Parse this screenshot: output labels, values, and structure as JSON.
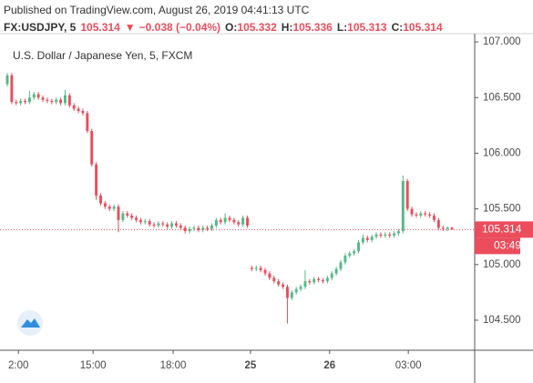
{
  "header": {
    "published": "Published on TradingView.com, August 26, 2019 04:41:13 UTC",
    "symbol": "FX:USDJPY, 5",
    "change_arrow": "▼",
    "change": "−0.038 (−0.04%)",
    "open_label": "O:",
    "high_label": "H:",
    "low_label": "L:",
    "close_label": "C:"
  },
  "chart_data": {
    "type": "candlestick",
    "title": "U.S. Dollar / Japanese Yen, 5, FXCM",
    "up_color": "#53b987",
    "down_color": "#eb4d5c",
    "grid": false,
    "countdown": "03:49",
    "ylim": [
      104.23,
      107.074
    ],
    "yticks": [
      {
        "value": 104.5,
        "label": "104.500"
      },
      {
        "value": 105,
        "label": "105.000"
      },
      {
        "value": 105.5,
        "label": "105.500"
      },
      {
        "value": 106,
        "label": "106.000"
      },
      {
        "value": 106.5,
        "label": "106.500"
      },
      {
        "value": 107,
        "label": "107.000"
      }
    ],
    "xlim": [
      -1.64,
      104.92
    ],
    "xticks": [
      {
        "value": 2.5,
        "label": "2:00"
      },
      {
        "value": 19.3,
        "label": "15:00"
      },
      {
        "value": 37.3,
        "label": "18:00"
      },
      {
        "value": 54.7,
        "label": "25"
      },
      {
        "value": 72.5,
        "label": "26"
      },
      {
        "value": 90.2,
        "label": "03:00"
      }
    ],
    "open": [
      106.62,
      106.7,
      106.46,
      106.45,
      106.47,
      106.46,
      106.5,
      106.53,
      106.5,
      106.48,
      106.47,
      106.46,
      106.48,
      106.45,
      106.52,
      106.43,
      106.4,
      106.38,
      106.36,
      106.2,
      105.9,
      105.62,
      105.55,
      105.52,
      105.5,
      105.52,
      105.4,
      105.46,
      105.44,
      105.42,
      105.4,
      105.38,
      105.39,
      105.36,
      105.35,
      105.37,
      105.36,
      105.34,
      105.37,
      105.35,
      105.33,
      105.3,
      105.32,
      105.33,
      105.31,
      105.33,
      105.32,
      105.35,
      105.4,
      105.38,
      105.42,
      105.4,
      105.38,
      105.36,
      105.42,
      104.97,
      104.96,
      104.97,
      104.95,
      104.92,
      104.88,
      104.85,
      104.82,
      104.8,
      104.7,
      104.75,
      104.78,
      104.8,
      104.85,
      104.84,
      104.87,
      104.86,
      104.85,
      104.88,
      104.92,
      104.96,
      105.02,
      105.08,
      105.1,
      105.12,
      105.2,
      105.24,
      105.22,
      105.25,
      105.27,
      105.26,
      105.27,
      105.26,
      105.28,
      105.3,
      105.75,
      105.5,
      105.45,
      105.44,
      105.46,
      105.45,
      105.44,
      105.4,
      105.33,
      105.32,
      105.332
    ],
    "high": [
      106.72,
      106.72,
      106.48,
      106.49,
      106.49,
      106.56,
      106.55,
      106.55,
      106.52,
      106.5,
      106.49,
      106.5,
      106.5,
      106.57,
      106.54,
      106.45,
      106.42,
      106.4,
      106.38,
      106.22,
      105.92,
      105.64,
      105.57,
      105.54,
      105.54,
      105.54,
      105.48,
      105.48,
      105.46,
      105.44,
      105.42,
      105.41,
      105.41,
      105.38,
      105.39,
      105.39,
      105.38,
      105.39,
      105.39,
      105.37,
      105.35,
      105.34,
      105.35,
      105.35,
      105.35,
      105.35,
      105.37,
      105.42,
      105.42,
      105.46,
      105.44,
      105.42,
      105.4,
      105.44,
      105.44,
      104.99,
      104.99,
      104.99,
      104.97,
      104.94,
      104.9,
      104.87,
      104.84,
      104.82,
      104.77,
      104.8,
      104.82,
      104.95,
      104.87,
      104.89,
      104.89,
      104.88,
      104.9,
      104.94,
      104.98,
      105.04,
      105.1,
      105.12,
      105.14,
      105.22,
      105.27,
      105.26,
      105.27,
      105.29,
      105.29,
      105.29,
      105.29,
      105.3,
      105.32,
      105.8,
      105.77,
      105.52,
      105.47,
      105.48,
      105.48,
      105.47,
      105.46,
      105.42,
      105.35,
      105.34,
      105.336
    ],
    "low": [
      106.6,
      106.44,
      106.43,
      106.43,
      106.44,
      106.44,
      106.48,
      106.48,
      106.46,
      106.45,
      106.44,
      106.44,
      106.43,
      106.43,
      106.41,
      106.38,
      106.36,
      106.34,
      106.18,
      105.88,
      105.58,
      105.53,
      105.5,
      105.48,
      105.48,
      105.29,
      105.38,
      105.42,
      105.4,
      105.38,
      105.36,
      105.36,
      105.34,
      105.33,
      105.33,
      105.34,
      105.32,
      105.32,
      105.33,
      105.31,
      105.28,
      105.28,
      105.3,
      105.29,
      105.29,
      105.3,
      105.3,
      105.33,
      105.36,
      105.36,
      105.38,
      105.36,
      105.34,
      105.34,
      105.33,
      104.94,
      104.94,
      104.93,
      104.9,
      104.86,
      104.83,
      104.8,
      104.78,
      104.47,
      104.68,
      104.73,
      104.76,
      104.78,
      104.82,
      104.82,
      104.84,
      104.83,
      104.83,
      104.86,
      104.9,
      104.94,
      105.0,
      105.06,
      105.08,
      105.1,
      105.18,
      105.2,
      105.2,
      105.23,
      105.24,
      105.24,
      105.24,
      105.24,
      105.26,
      105.28,
      105.48,
      105.43,
      105.42,
      105.42,
      105.43,
      105.42,
      105.38,
      105.31,
      105.3,
      105.3,
      105.313
    ],
    "close": [
      106.7,
      106.46,
      106.45,
      106.47,
      106.46,
      106.5,
      106.53,
      106.5,
      106.48,
      106.47,
      106.46,
      106.48,
      106.45,
      106.52,
      106.43,
      106.4,
      106.38,
      106.36,
      106.2,
      105.9,
      105.62,
      105.55,
      105.52,
      105.5,
      105.52,
      105.4,
      105.46,
      105.44,
      105.42,
      105.4,
      105.38,
      105.39,
      105.36,
      105.35,
      105.37,
      105.36,
      105.34,
      105.37,
      105.35,
      105.33,
      105.3,
      105.32,
      105.33,
      105.31,
      105.33,
      105.32,
      105.35,
      105.4,
      105.38,
      105.42,
      105.4,
      105.38,
      105.36,
      105.42,
      105.35,
      104.96,
      104.97,
      104.95,
      104.92,
      104.88,
      104.85,
      104.82,
      104.8,
      104.7,
      104.75,
      104.78,
      104.8,
      104.85,
      104.84,
      104.87,
      104.86,
      104.85,
      104.88,
      104.92,
      104.96,
      105.02,
      105.08,
      105.1,
      105.12,
      105.2,
      105.24,
      105.22,
      105.25,
      105.27,
      105.26,
      105.27,
      105.26,
      105.28,
      105.3,
      105.75,
      105.5,
      105.45,
      105.44,
      105.46,
      105.45,
      105.44,
      105.4,
      105.33,
      105.32,
      105.332,
      105.314
    ]
  }
}
